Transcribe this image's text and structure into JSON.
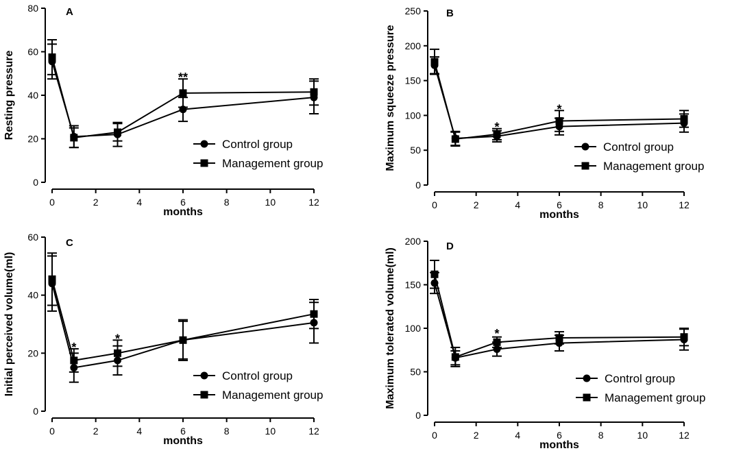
{
  "chart_data": [
    {
      "type": "line",
      "panel_label": "A",
      "xlabel": "months",
      "ylabel": "Resting pressure",
      "xlim": [
        0,
        12
      ],
      "ylim": [
        0,
        80
      ],
      "xticks": [
        "0",
        "2",
        "4",
        "6",
        "8",
        "10",
        "12"
      ],
      "yticks": [
        "0",
        "20",
        "40",
        "60",
        "80"
      ],
      "series": [
        {
          "name": "Control group",
          "marker": "circle",
          "x": [
            0,
            1,
            3,
            6,
            12
          ],
          "values": [
            55.5,
            21,
            22,
            33.5,
            39
          ],
          "err_low": [
            8,
            5,
            5.5,
            5.5,
            7.5
          ],
          "err_high": [
            8,
            5,
            5.5,
            5.5,
            7.5
          ]
        },
        {
          "name": "Management group",
          "marker": "square",
          "x": [
            0,
            1,
            3,
            6,
            12
          ],
          "values": [
            57.5,
            20.5,
            23,
            41,
            41.5
          ],
          "err_low": [
            8,
            4.5,
            4,
            6.5,
            6
          ],
          "err_high": [
            8,
            4.5,
            4,
            6.5,
            6
          ]
        }
      ],
      "annotations": [
        {
          "x": 6,
          "y": 47.5,
          "text": "**"
        }
      ],
      "legend_position": "bottom-right"
    },
    {
      "type": "line",
      "panel_label": "B",
      "xlabel": "months",
      "ylabel": "Maximum squeeze pressure",
      "xlim": [
        0,
        12
      ],
      "ylim": [
        0,
        250
      ],
      "xticks": [
        "0",
        "2",
        "4",
        "6",
        "8",
        "10",
        "12"
      ],
      "yticks": [
        "0",
        "50",
        "100",
        "150",
        "200",
        "250"
      ],
      "series": [
        {
          "name": "Control group",
          "marker": "circle",
          "x": [
            0,
            1,
            3,
            6,
            12
          ],
          "values": [
            172,
            67,
            70,
            84,
            89
          ],
          "err_low": [
            12,
            10,
            8,
            12,
            13
          ],
          "err_high": [
            12,
            10,
            8,
            12,
            13
          ]
        },
        {
          "name": "Management group",
          "marker": "square",
          "x": [
            0,
            1,
            3,
            6,
            12
          ],
          "values": [
            177,
            66,
            73,
            92,
            95
          ],
          "err_low": [
            18,
            10,
            8,
            15,
            12
          ],
          "err_high": [
            18,
            10,
            8,
            15,
            12
          ]
        }
      ],
      "annotations": [
        {
          "x": 3,
          "y": 81,
          "text": "*"
        },
        {
          "x": 6,
          "y": 107,
          "text": "*"
        }
      ],
      "legend_position": "bottom-right"
    },
    {
      "type": "line",
      "panel_label": "C",
      "xlabel": "months",
      "ylabel": "Initial perceived volume(ml)",
      "xlim": [
        0,
        12
      ],
      "ylim": [
        0,
        60
      ],
      "xticks": [
        "0",
        "2",
        "4",
        "6",
        "8",
        "10",
        "12"
      ],
      "yticks": [
        "0",
        "20",
        "40",
        "60"
      ],
      "series": [
        {
          "name": "Control group",
          "marker": "circle",
          "x": [
            0,
            1,
            3,
            6,
            12
          ],
          "values": [
            44,
            15,
            17.5,
            24.5,
            30.5
          ],
          "err_low": [
            9.5,
            5,
            5,
            7,
            7
          ],
          "err_high": [
            9.5,
            5,
            5,
            7,
            7
          ]
        },
        {
          "name": "Management group",
          "marker": "square",
          "x": [
            0,
            1,
            3,
            6,
            12
          ],
          "values": [
            45.5,
            17.5,
            20,
            24.5,
            33.5
          ],
          "err_low": [
            9,
            4,
            4.5,
            6.5,
            5
          ],
          "err_high": [
            9,
            4,
            4.5,
            6.5,
            5
          ]
        }
      ],
      "annotations": [
        {
          "x": 1,
          "y": 21.5,
          "text": "*"
        },
        {
          "x": 3,
          "y": 24.5,
          "text": "*"
        }
      ],
      "legend_position": "bottom-right"
    },
    {
      "type": "line",
      "panel_label": "D",
      "xlabel": "months",
      "ylabel": "Maximum tolerated volume(ml)",
      "xlim": [
        0,
        12
      ],
      "ylim": [
        0,
        200
      ],
      "xticks": [
        "0",
        "2",
        "4",
        "6",
        "8",
        "10",
        "12"
      ],
      "yticks": [
        "0",
        "50",
        "100",
        "150",
        "200"
      ],
      "series": [
        {
          "name": "Control group",
          "marker": "circle",
          "x": [
            0,
            1,
            3,
            6,
            12
          ],
          "values": [
            152,
            66,
            76,
            83,
            87
          ],
          "err_low": [
            12,
            8,
            8,
            9,
            12
          ],
          "err_high": [
            12,
            8,
            8,
            9,
            12
          ]
        },
        {
          "name": "Management group",
          "marker": "square",
          "x": [
            0,
            1,
            3,
            6,
            12
          ],
          "values": [
            162,
            67,
            84,
            89,
            90
          ],
          "err_low": [
            16,
            11,
            6,
            7,
            10
          ],
          "err_high": [
            16,
            11,
            6,
            7,
            10
          ]
        }
      ],
      "annotations": [
        {
          "x": 3,
          "y": 92,
          "text": "*"
        }
      ],
      "legend_position": "bottom-right"
    }
  ]
}
